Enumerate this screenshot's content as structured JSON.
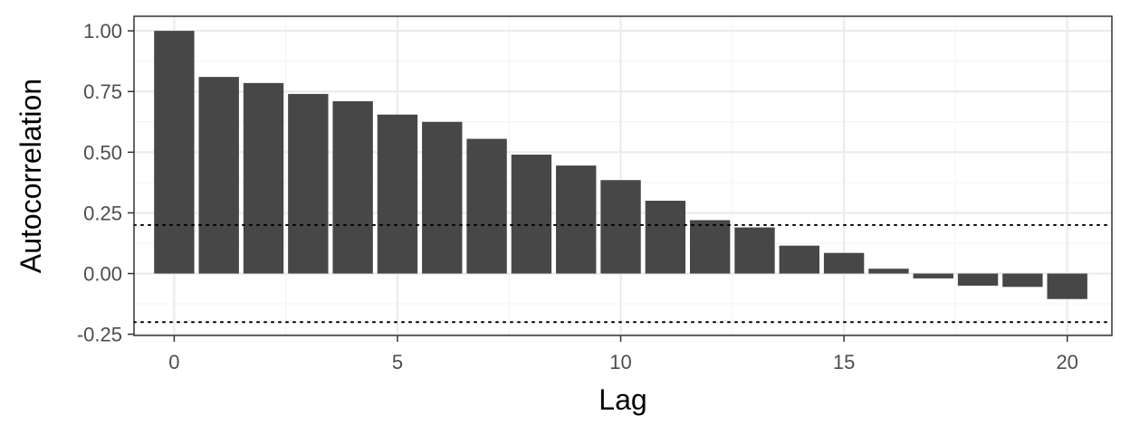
{
  "chart_data": {
    "type": "bar",
    "xlabel": "Lag",
    "ylabel": "Autocorrelation",
    "x": [
      0,
      1,
      2,
      3,
      4,
      5,
      6,
      7,
      8,
      9,
      10,
      11,
      12,
      13,
      14,
      15,
      16,
      17,
      18,
      19,
      20
    ],
    "values": [
      1.0,
      0.81,
      0.785,
      0.74,
      0.71,
      0.655,
      0.625,
      0.555,
      0.49,
      0.445,
      0.385,
      0.3,
      0.22,
      0.19,
      0.115,
      0.085,
      0.02,
      -0.02,
      -0.05,
      -0.055,
      -0.105
    ],
    "xlim": [
      -0.9,
      21.0
    ],
    "ylim": [
      -0.255,
      1.06
    ],
    "x_ticks": [
      0,
      5,
      10,
      15,
      20
    ],
    "x_tick_labels": [
      "0",
      "5",
      "10",
      "15",
      "20"
    ],
    "y_ticks": [
      -0.25,
      0,
      0.25,
      0.5,
      0.75,
      1.0
    ],
    "y_tick_labels": [
      "-0.25",
      "0.00",
      "0.25",
      "0.50",
      "0.75",
      "1.00"
    ],
    "confidence_bounds": [
      0.2,
      -0.2
    ],
    "grid": true,
    "colors": {
      "bar": "#474747",
      "grid_major": "#ebebeb",
      "grid_minor": "#f5f5f5",
      "panel_border": "#333333",
      "bound_line": "#000000"
    }
  }
}
